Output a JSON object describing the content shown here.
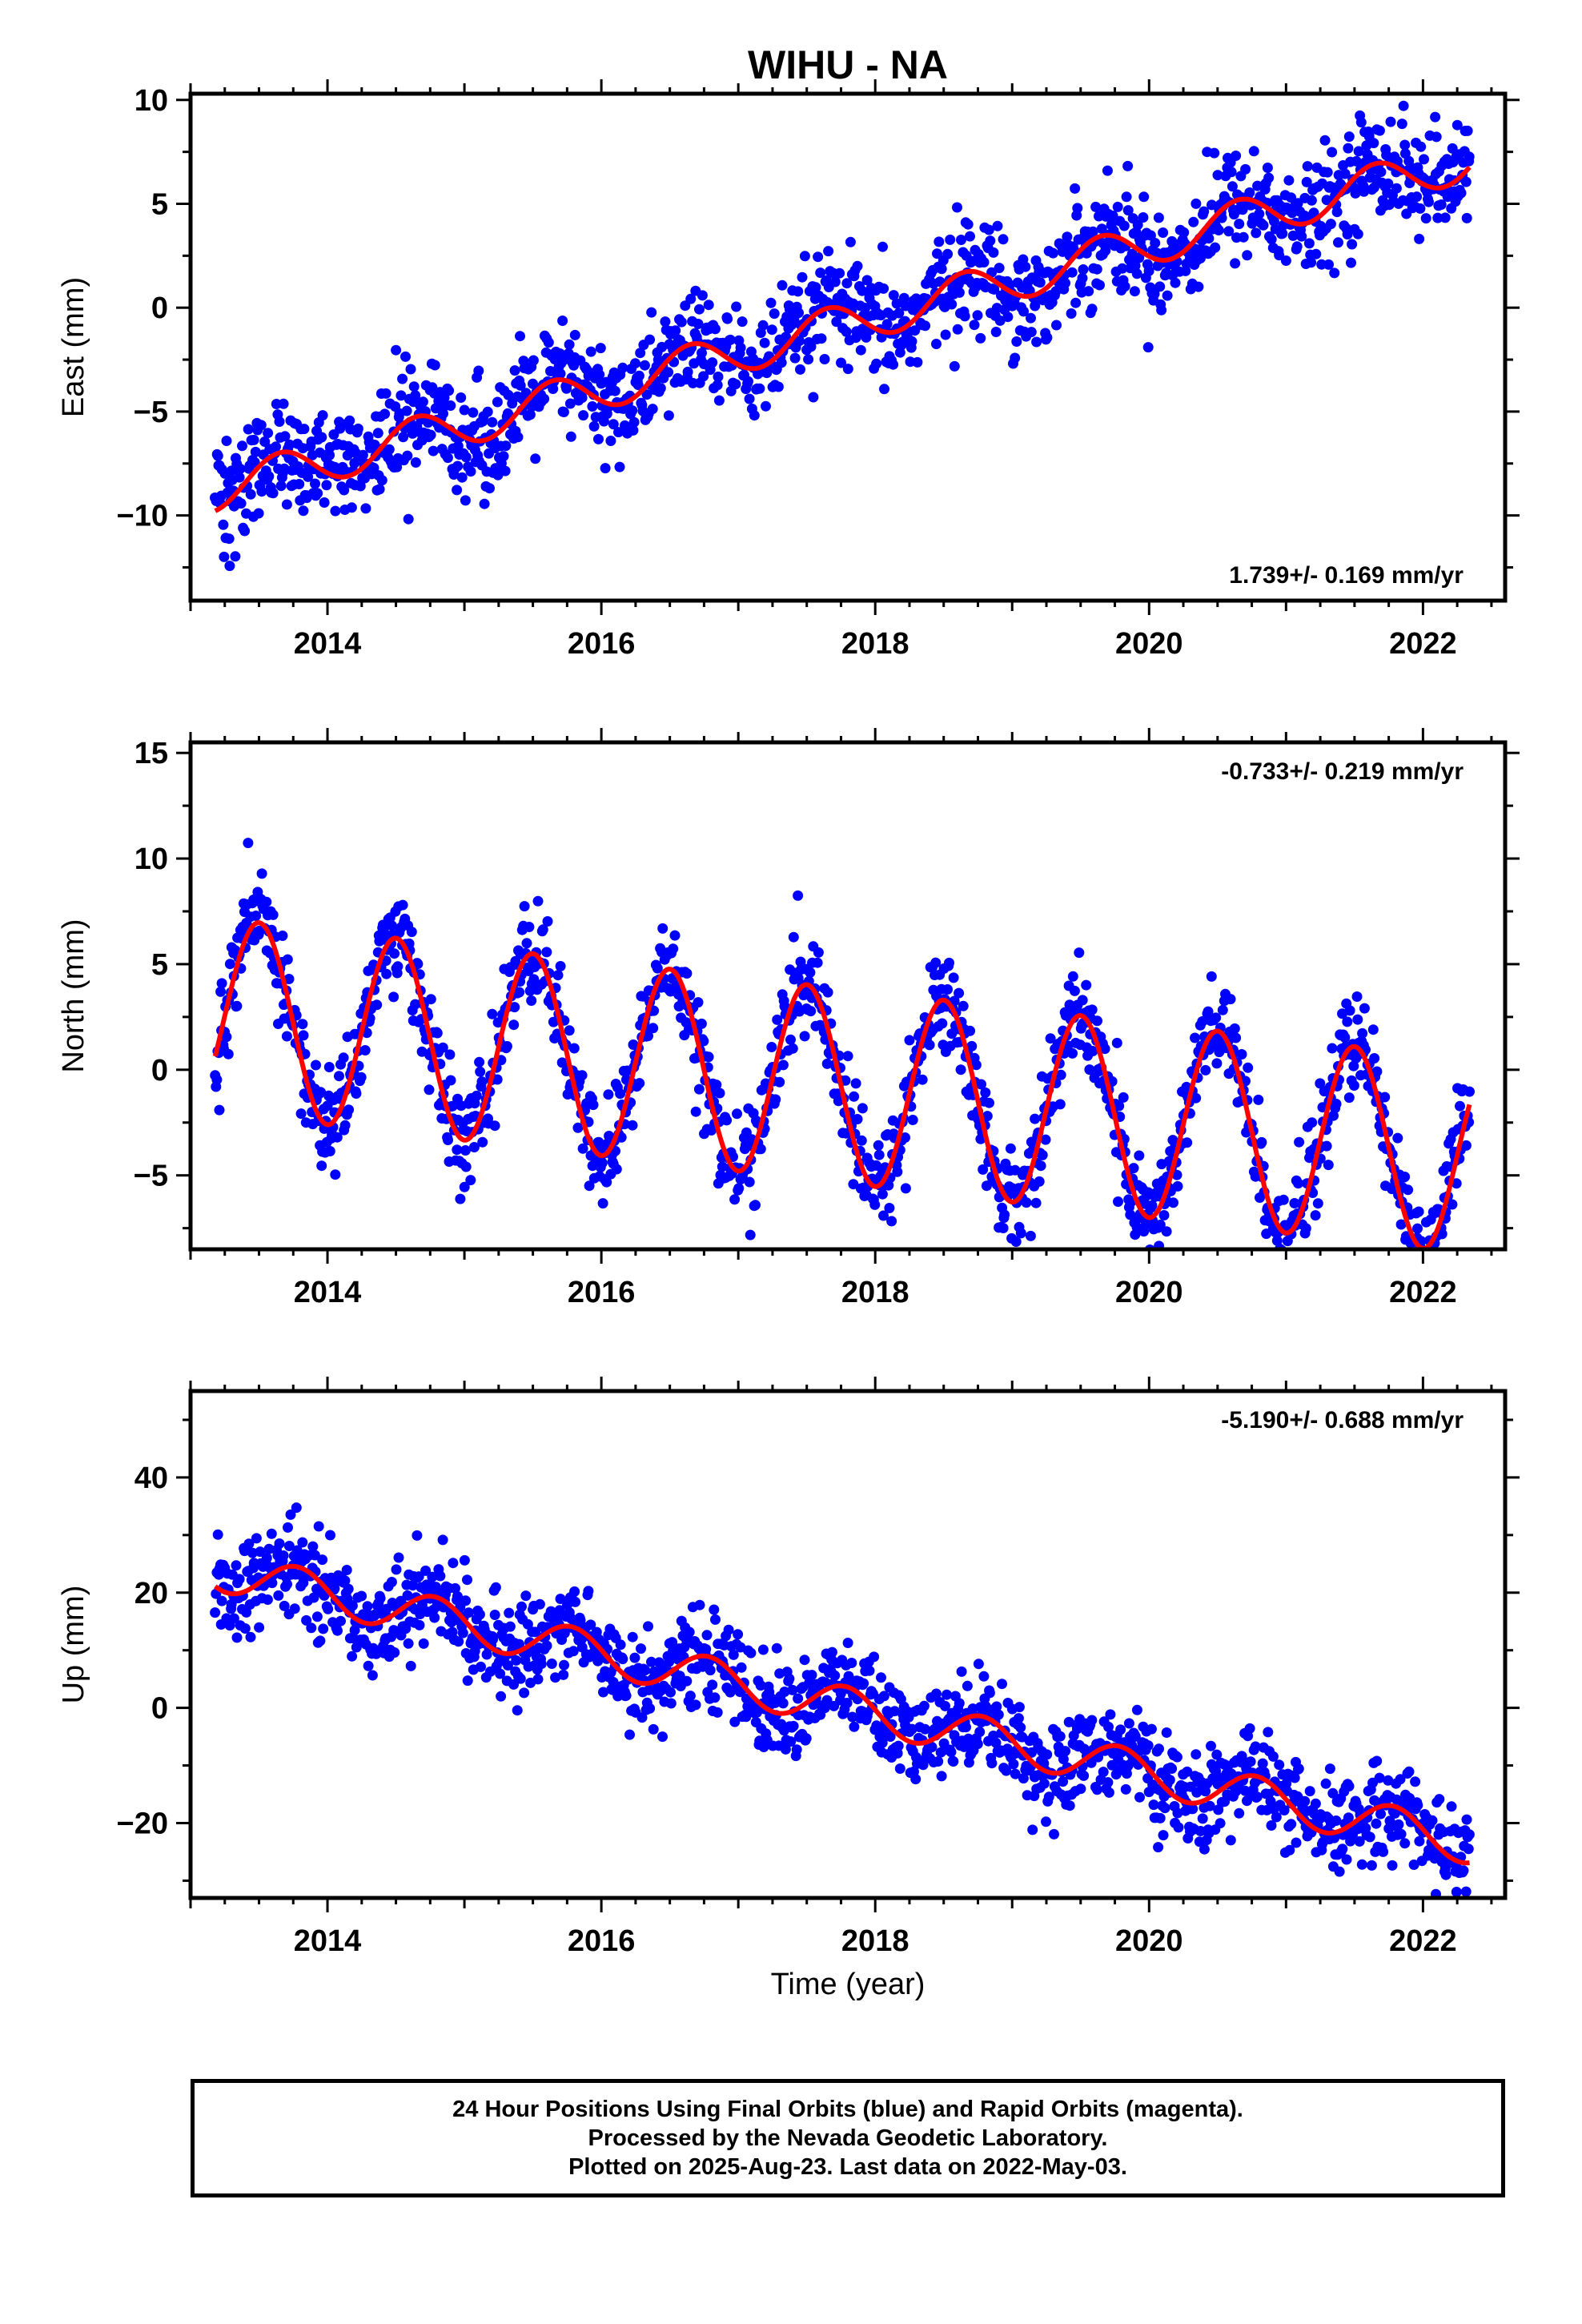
{
  "title": "WIHU - NA",
  "xlabel": "Time (year)",
  "colors": {
    "points": "#0000ff",
    "fit": "#ff0000",
    "frame": "#000000"
  },
  "footer": {
    "lines": [
      "24 Hour Positions Using Final Orbits (blue) and Rapid Orbits (magenta).",
      "Processed by the Nevada Geodetic Laboratory.",
      "Plotted on 2025-Aug-23. Last data on 2022-May-03."
    ]
  },
  "chart_data": [
    {
      "type": "scatter",
      "ylabel": "East (mm)",
      "rate_label": "1.739+/- 0.169 mm/yr",
      "rate_position": "bottom-right",
      "xlim": [
        2013.0,
        2022.6
      ],
      "ylim": [
        -14.1,
        10.3
      ],
      "xticks": [
        2014,
        2016,
        2018,
        2020,
        2022
      ],
      "xtick_labels": [
        "2014",
        "2016",
        "2018",
        "2020",
        "2022"
      ],
      "yticks": [
        -10,
        -5,
        0,
        5,
        10
      ],
      "ytick_labels": [
        "−10",
        "−5",
        "0",
        "5",
        "10"
      ],
      "data_start": 2013.18,
      "data_end": 2022.34,
      "fit_offset_at_start": -8.8,
      "rate_mm_per_yr": 1.739,
      "annual_amplitude": 1.0,
      "annual_phase_peak": 0.65,
      "scatter_std": 1.3
    },
    {
      "type": "scatter",
      "ylabel": "North (mm)",
      "rate_label": "-0.733+/- 0.219 mm/yr",
      "rate_position": "top-right",
      "xlim": [
        2013.0,
        2022.6
      ],
      "ylim": [
        -8.5,
        15.5
      ],
      "xticks": [
        2014,
        2016,
        2018,
        2020,
        2022
      ],
      "xtick_labels": [
        "2014",
        "2016",
        "2018",
        "2020",
        "2022"
      ],
      "yticks": [
        -5,
        0,
        5,
        10,
        15
      ],
      "ytick_labels": [
        "−5",
        "0",
        "5",
        "10",
        "15"
      ],
      "data_start": 2013.18,
      "data_end": 2022.34,
      "fit_offset_at_start": 2.6,
      "rate_mm_per_yr": -0.733,
      "annual_amplitude": 4.6,
      "annual_phase_peak": 0.5,
      "scatter_std": 1.2
    },
    {
      "type": "scatter",
      "ylabel": "Up (mm)",
      "rate_label": "-5.190+/- 0.688 mm/yr",
      "rate_position": "top-right",
      "xlim": [
        2013.0,
        2022.6
      ],
      "ylim": [
        -33,
        55
      ],
      "xticks": [
        2014,
        2016,
        2018,
        2020,
        2022
      ],
      "xtick_labels": [
        "2014",
        "2016",
        "2018",
        "2020",
        "2022"
      ],
      "yticks": [
        -20,
        0,
        20,
        40
      ],
      "ytick_labels": [
        "−20",
        "0",
        "20",
        "40"
      ],
      "data_start": 2013.18,
      "data_end": 2022.34,
      "fit_offset_at_start": 24.0,
      "rate_mm_per_yr": -5.19,
      "annual_amplitude": 3.6,
      "annual_phase_peak": 0.78,
      "scatter_std": 4.0
    }
  ]
}
